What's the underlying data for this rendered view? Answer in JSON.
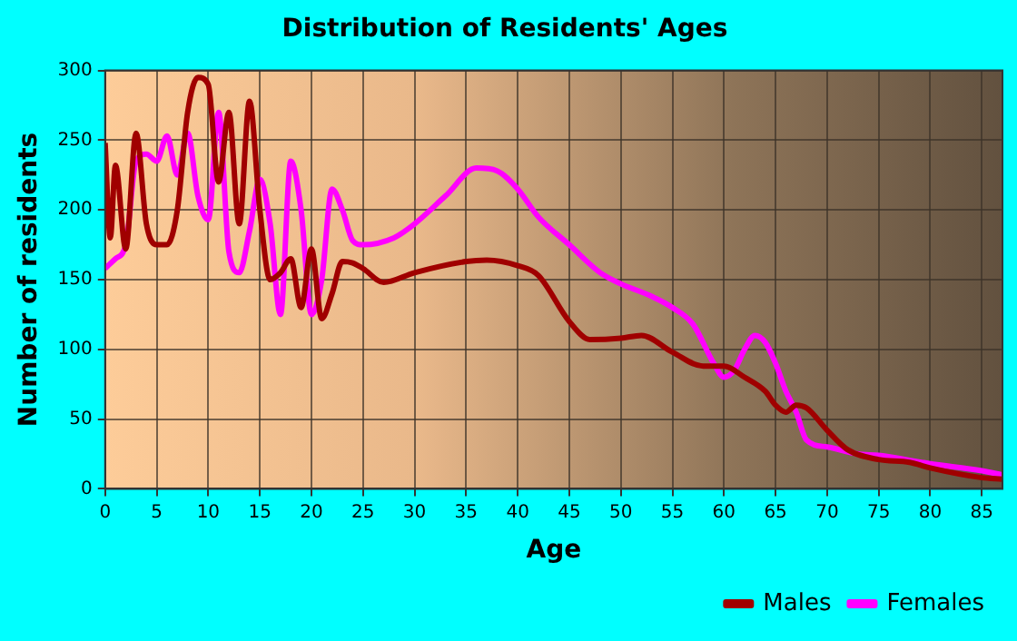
{
  "chart_data": {
    "type": "line",
    "title": "Distribution of Residents' Ages",
    "xlabel": "Age",
    "ylabel": "Number of residents",
    "xlim": [
      0,
      87
    ],
    "xticks": [
      0,
      5,
      10,
      15,
      20,
      25,
      30,
      35,
      40,
      45,
      50,
      55,
      60,
      65,
      70,
      75,
      80,
      85
    ],
    "ylim": [
      0,
      300
    ],
    "yticks": [
      0,
      50,
      100,
      150,
      200,
      250,
      300
    ],
    "grid": true,
    "legend": "bottom right",
    "marker": "none",
    "line_style": "solid",
    "series": [
      {
        "name": "Males",
        "color": "#a00000",
        "x": [
          0,
          0.5,
          1,
          2,
          3,
          4,
          5,
          6,
          7,
          8,
          9,
          10,
          11,
          12,
          13,
          14,
          15,
          16,
          17,
          18,
          19,
          20,
          21,
          22,
          23,
          24,
          25,
          27,
          30,
          35,
          37,
          40,
          42,
          45,
          47,
          50,
          52,
          55,
          58,
          60,
          62,
          64,
          65,
          66,
          67,
          68,
          70,
          72,
          75,
          78,
          80,
          85,
          87
        ],
        "values": [
          248,
          180,
          232,
          172,
          255,
          190,
          175,
          175,
          200,
          270,
          295,
          290,
          220,
          270,
          190,
          278,
          200,
          150,
          155,
          165,
          130,
          172,
          122,
          140,
          163,
          162,
          158,
          148,
          155,
          163,
          164,
          160,
          153,
          120,
          107,
          108,
          110,
          98,
          88,
          88,
          80,
          70,
          60,
          55,
          60,
          58,
          42,
          28,
          21,
          19,
          15,
          8,
          7
        ]
      },
      {
        "name": "Females",
        "color": "#ff00ff",
        "x": [
          0,
          1,
          2,
          3,
          4,
          5,
          6,
          7,
          8,
          9,
          10,
          11,
          12,
          13,
          14,
          15,
          16,
          17,
          18,
          19,
          20,
          21,
          22,
          23,
          24,
          25,
          28,
          30,
          33,
          36,
          38,
          40,
          42,
          45,
          48,
          50,
          53,
          55,
          57,
          59,
          60,
          61,
          62,
          63,
          64,
          65,
          66,
          67,
          68,
          70,
          73,
          75,
          80,
          85,
          87
        ],
        "values": [
          158,
          165,
          175,
          235,
          240,
          235,
          253,
          225,
          255,
          210,
          193,
          270,
          170,
          155,
          185,
          222,
          190,
          125,
          235,
          200,
          125,
          150,
          215,
          200,
          178,
          175,
          180,
          190,
          210,
          230,
          228,
          215,
          195,
          175,
          155,
          147,
          138,
          130,
          118,
          90,
          80,
          85,
          100,
          110,
          105,
          90,
          70,
          55,
          35,
          30,
          25,
          24,
          18,
          13,
          10
        ]
      }
    ]
  }
}
